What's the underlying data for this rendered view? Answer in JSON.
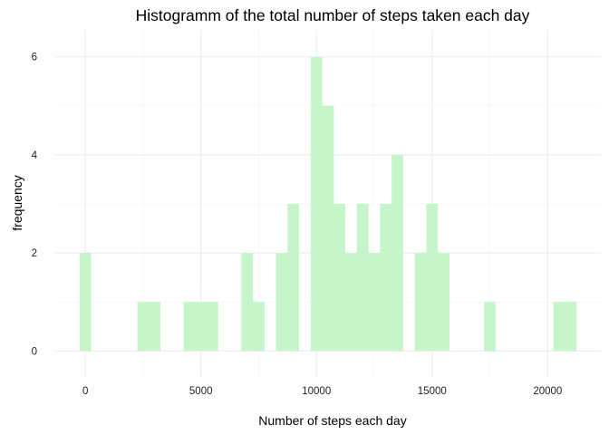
{
  "chart_data": {
    "type": "bar",
    "title": "Histogramm of the total number of steps taken each day",
    "xlabel": "Number of steps each day",
    "ylabel": "frequency",
    "xlim": [
      -1300,
      22300
    ],
    "ylim": [
      -0.55,
      6.55
    ],
    "x_ticks": [
      0,
      5000,
      10000,
      15000,
      20000
    ],
    "y_ticks": [
      0,
      2,
      4,
      6
    ],
    "grid": true,
    "bar_color": "#c5f5c9",
    "bin_width": 500,
    "bins": [
      {
        "x0": -250,
        "x1": 250,
        "count": 2
      },
      {
        "x0": 2250,
        "x1": 2750,
        "count": 1
      },
      {
        "x0": 2750,
        "x1": 3250,
        "count": 1
      },
      {
        "x0": 4250,
        "x1": 4750,
        "count": 1
      },
      {
        "x0": 4750,
        "x1": 5250,
        "count": 1
      },
      {
        "x0": 5250,
        "x1": 5750,
        "count": 1
      },
      {
        "x0": 6750,
        "x1": 7250,
        "count": 2
      },
      {
        "x0": 7250,
        "x1": 7750,
        "count": 1
      },
      {
        "x0": 8250,
        "x1": 8750,
        "count": 2
      },
      {
        "x0": 8750,
        "x1": 9250,
        "count": 3
      },
      {
        "x0": 9750,
        "x1": 10250,
        "count": 6
      },
      {
        "x0": 10250,
        "x1": 10750,
        "count": 5
      },
      {
        "x0": 10750,
        "x1": 11250,
        "count": 3
      },
      {
        "x0": 11250,
        "x1": 11750,
        "count": 2
      },
      {
        "x0": 11750,
        "x1": 12250,
        "count": 3
      },
      {
        "x0": 12250,
        "x1": 12750,
        "count": 2
      },
      {
        "x0": 12750,
        "x1": 13250,
        "count": 3
      },
      {
        "x0": 13250,
        "x1": 13750,
        "count": 4
      },
      {
        "x0": 14250,
        "x1": 14750,
        "count": 2
      },
      {
        "x0": 14750,
        "x1": 15250,
        "count": 3
      },
      {
        "x0": 15250,
        "x1": 15750,
        "count": 2
      },
      {
        "x0": 17250,
        "x1": 17750,
        "count": 1
      },
      {
        "x0": 20250,
        "x1": 20750,
        "count": 1
      },
      {
        "x0": 20750,
        "x1": 21250,
        "count": 1
      }
    ]
  }
}
